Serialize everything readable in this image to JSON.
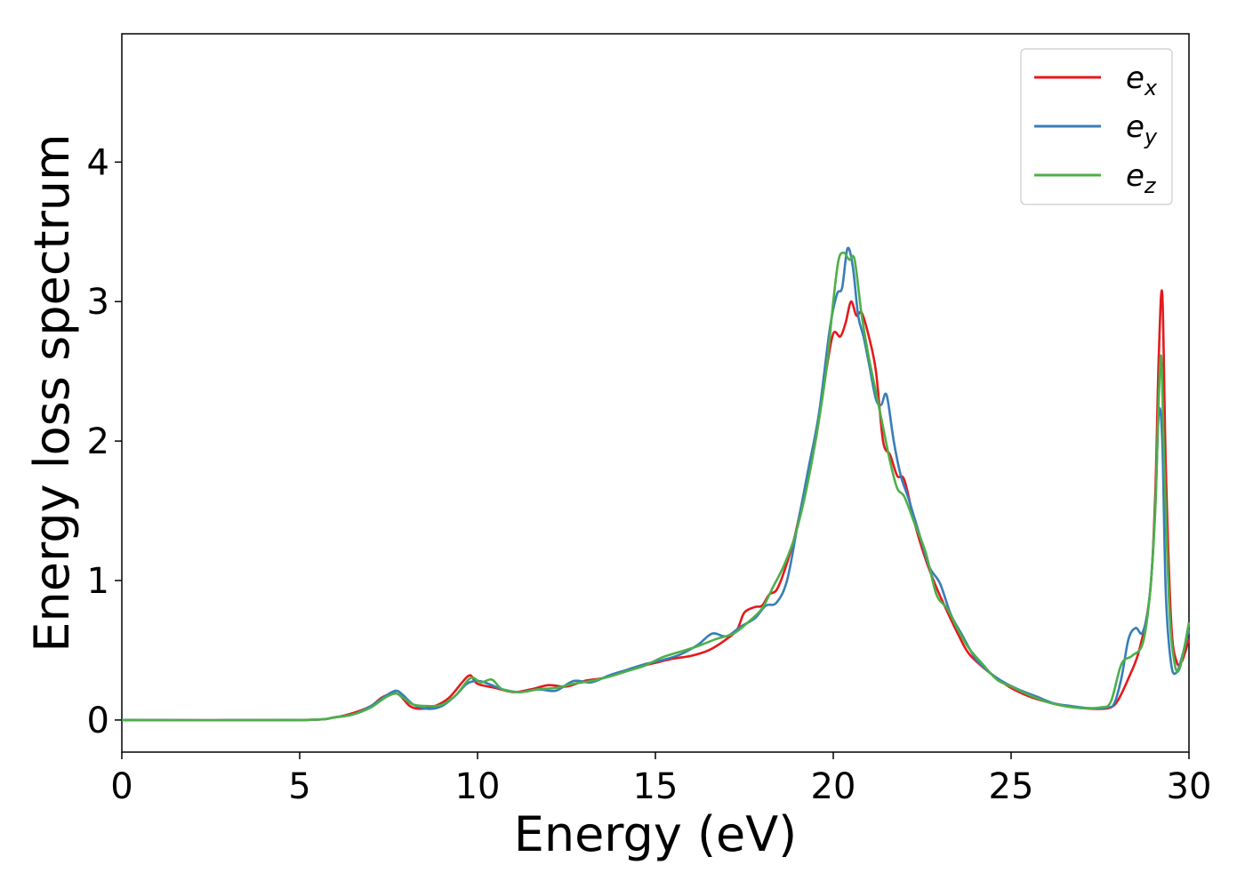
{
  "chart_data": {
    "type": "line",
    "title": "",
    "xlabel": "Energy (eV)",
    "ylabel": "Energy loss spectrum",
    "xlim": [
      0,
      30
    ],
    "ylim": [
      -0.23,
      4.92
    ],
    "xticks": [
      0,
      5,
      10,
      15,
      20,
      25,
      30
    ],
    "yticks": [
      0,
      1,
      2,
      3,
      4
    ],
    "grid": false,
    "legend_position": "top-right",
    "series": [
      {
        "name": "e",
        "subscript": "x",
        "color": "#e41a1c",
        "points": [
          [
            0,
            0
          ],
          [
            5,
            0
          ],
          [
            6,
            0.02
          ],
          [
            6.5,
            0.05
          ],
          [
            7,
            0.1
          ],
          [
            7.3,
            0.16
          ],
          [
            7.6,
            0.19
          ],
          [
            7.8,
            0.18
          ],
          [
            8.1,
            0.1
          ],
          [
            8.4,
            0.08
          ],
          [
            8.8,
            0.1
          ],
          [
            9.2,
            0.16
          ],
          [
            9.6,
            0.28
          ],
          [
            9.8,
            0.32
          ],
          [
            10,
            0.26
          ],
          [
            10.5,
            0.23
          ],
          [
            11,
            0.2
          ],
          [
            11.5,
            0.22
          ],
          [
            12,
            0.25
          ],
          [
            12.5,
            0.24
          ],
          [
            13,
            0.28
          ],
          [
            13.5,
            0.3
          ],
          [
            14,
            0.34
          ],
          [
            14.5,
            0.38
          ],
          [
            15,
            0.41
          ],
          [
            15.5,
            0.44
          ],
          [
            16,
            0.46
          ],
          [
            16.5,
            0.5
          ],
          [
            17,
            0.58
          ],
          [
            17.3,
            0.65
          ],
          [
            17.5,
            0.77
          ],
          [
            17.8,
            0.81
          ],
          [
            18,
            0.82
          ],
          [
            18.2,
            0.9
          ],
          [
            18.4,
            0.93
          ],
          [
            18.6,
            1.05
          ],
          [
            18.9,
            1.3
          ],
          [
            19.2,
            1.65
          ],
          [
            19.5,
            2.0
          ],
          [
            19.8,
            2.5
          ],
          [
            20.0,
            2.77
          ],
          [
            20.2,
            2.75
          ],
          [
            20.35,
            2.85
          ],
          [
            20.5,
            3.0
          ],
          [
            20.65,
            2.9
          ],
          [
            20.8,
            2.92
          ],
          [
            21.0,
            2.75
          ],
          [
            21.2,
            2.5
          ],
          [
            21.4,
            2.0
          ],
          [
            21.6,
            1.9
          ],
          [
            21.8,
            1.75
          ],
          [
            22.0,
            1.72
          ],
          [
            22.3,
            1.4
          ],
          [
            22.6,
            1.15
          ],
          [
            22.9,
            0.95
          ],
          [
            23.2,
            0.78
          ],
          [
            23.5,
            0.62
          ],
          [
            23.8,
            0.48
          ],
          [
            24.2,
            0.38
          ],
          [
            24.6,
            0.3
          ],
          [
            25.0,
            0.23
          ],
          [
            25.5,
            0.17
          ],
          [
            26,
            0.13
          ],
          [
            26.5,
            0.1
          ],
          [
            27,
            0.085
          ],
          [
            27.5,
            0.08
          ],
          [
            27.8,
            0.09
          ],
          [
            28.0,
            0.14
          ],
          [
            28.3,
            0.3
          ],
          [
            28.6,
            0.5
          ],
          [
            28.9,
            0.9
          ],
          [
            29.05,
            1.6
          ],
          [
            29.15,
            2.6
          ],
          [
            29.25,
            3.05
          ],
          [
            29.35,
            1.8
          ],
          [
            29.5,
            0.7
          ],
          [
            29.65,
            0.42
          ],
          [
            29.8,
            0.42
          ],
          [
            30,
            0.58
          ]
        ]
      },
      {
        "name": "e",
        "subscript": "y",
        "color": "#377eb8",
        "points": [
          [
            0,
            0
          ],
          [
            5,
            0
          ],
          [
            6,
            0.02
          ],
          [
            6.5,
            0.04
          ],
          [
            7,
            0.1
          ],
          [
            7.4,
            0.17
          ],
          [
            7.7,
            0.21
          ],
          [
            7.9,
            0.18
          ],
          [
            8.2,
            0.11
          ],
          [
            8.6,
            0.08
          ],
          [
            9.0,
            0.1
          ],
          [
            9.4,
            0.18
          ],
          [
            9.7,
            0.26
          ],
          [
            10,
            0.28
          ],
          [
            10.3,
            0.26
          ],
          [
            10.7,
            0.22
          ],
          [
            11.2,
            0.2
          ],
          [
            11.7,
            0.22
          ],
          [
            12.2,
            0.21
          ],
          [
            12.7,
            0.28
          ],
          [
            13.2,
            0.27
          ],
          [
            13.7,
            0.32
          ],
          [
            14.2,
            0.36
          ],
          [
            14.7,
            0.4
          ],
          [
            15.2,
            0.43
          ],
          [
            15.7,
            0.47
          ],
          [
            16.2,
            0.54
          ],
          [
            16.6,
            0.62
          ],
          [
            17.0,
            0.6
          ],
          [
            17.4,
            0.67
          ],
          [
            17.8,
            0.73
          ],
          [
            18.1,
            0.82
          ],
          [
            18.4,
            0.84
          ],
          [
            18.7,
            1.0
          ],
          [
            19.0,
            1.4
          ],
          [
            19.3,
            1.8
          ],
          [
            19.6,
            2.2
          ],
          [
            19.9,
            2.8
          ],
          [
            20.1,
            3.05
          ],
          [
            20.25,
            3.1
          ],
          [
            20.4,
            3.38
          ],
          [
            20.55,
            3.25
          ],
          [
            20.7,
            2.9
          ],
          [
            20.85,
            2.75
          ],
          [
            21.0,
            2.56
          ],
          [
            21.2,
            2.3
          ],
          [
            21.35,
            2.26
          ],
          [
            21.5,
            2.33
          ],
          [
            21.7,
            2.0
          ],
          [
            21.9,
            1.75
          ],
          [
            22.1,
            1.6
          ],
          [
            22.4,
            1.35
          ],
          [
            22.7,
            1.1
          ],
          [
            23.0,
            0.98
          ],
          [
            23.3,
            0.76
          ],
          [
            23.6,
            0.62
          ],
          [
            24.0,
            0.44
          ],
          [
            24.4,
            0.34
          ],
          [
            24.8,
            0.27
          ],
          [
            25.2,
            0.22
          ],
          [
            25.7,
            0.17
          ],
          [
            26.2,
            0.12
          ],
          [
            26.7,
            0.1
          ],
          [
            27.2,
            0.085
          ],
          [
            27.7,
            0.09
          ],
          [
            27.9,
            0.12
          ],
          [
            28.1,
            0.3
          ],
          [
            28.3,
            0.58
          ],
          [
            28.5,
            0.66
          ],
          [
            28.7,
            0.63
          ],
          [
            28.9,
            0.9
          ],
          [
            29.05,
            1.5
          ],
          [
            29.15,
            2.2
          ],
          [
            29.25,
            2.0
          ],
          [
            29.35,
            0.9
          ],
          [
            29.5,
            0.4
          ],
          [
            29.65,
            0.34
          ],
          [
            29.8,
            0.45
          ],
          [
            30,
            0.65
          ]
        ]
      },
      {
        "name": "e",
        "subscript": "z",
        "color": "#4daf4a",
        "points": [
          [
            0,
            0
          ],
          [
            5,
            0
          ],
          [
            6,
            0.02
          ],
          [
            6.5,
            0.04
          ],
          [
            7,
            0.09
          ],
          [
            7.4,
            0.16
          ],
          [
            7.7,
            0.19
          ],
          [
            7.9,
            0.16
          ],
          [
            8.2,
            0.11
          ],
          [
            8.6,
            0.1
          ],
          [
            9.0,
            0.11
          ],
          [
            9.4,
            0.18
          ],
          [
            9.8,
            0.3
          ],
          [
            10.1,
            0.27
          ],
          [
            10.4,
            0.29
          ],
          [
            10.7,
            0.22
          ],
          [
            11.2,
            0.2
          ],
          [
            11.7,
            0.22
          ],
          [
            12.2,
            0.23
          ],
          [
            12.7,
            0.26
          ],
          [
            13.2,
            0.28
          ],
          [
            13.7,
            0.31
          ],
          [
            14.2,
            0.35
          ],
          [
            14.7,
            0.39
          ],
          [
            15.2,
            0.45
          ],
          [
            15.7,
            0.49
          ],
          [
            16.2,
            0.53
          ],
          [
            16.7,
            0.58
          ],
          [
            17.2,
            0.62
          ],
          [
            17.6,
            0.7
          ],
          [
            18.0,
            0.8
          ],
          [
            18.3,
            0.95
          ],
          [
            18.6,
            1.1
          ],
          [
            18.9,
            1.3
          ],
          [
            19.2,
            1.6
          ],
          [
            19.5,
            2.0
          ],
          [
            19.8,
            2.5
          ],
          [
            20.0,
            3.0
          ],
          [
            20.15,
            3.3
          ],
          [
            20.3,
            3.35
          ],
          [
            20.45,
            3.3
          ],
          [
            20.6,
            3.3
          ],
          [
            20.8,
            2.9
          ],
          [
            21.0,
            2.6
          ],
          [
            21.2,
            2.35
          ],
          [
            21.4,
            2.1
          ],
          [
            21.6,
            1.85
          ],
          [
            21.8,
            1.66
          ],
          [
            22.0,
            1.6
          ],
          [
            22.3,
            1.4
          ],
          [
            22.6,
            1.2
          ],
          [
            22.9,
            0.9
          ],
          [
            23.2,
            0.8
          ],
          [
            23.5,
            0.65
          ],
          [
            23.8,
            0.52
          ],
          [
            24.2,
            0.4
          ],
          [
            24.6,
            0.29
          ],
          [
            25.0,
            0.24
          ],
          [
            25.5,
            0.18
          ],
          [
            26,
            0.13
          ],
          [
            26.5,
            0.1
          ],
          [
            27,
            0.085
          ],
          [
            27.5,
            0.09
          ],
          [
            27.8,
            0.13
          ],
          [
            28.1,
            0.4
          ],
          [
            28.4,
            0.46
          ],
          [
            28.7,
            0.55
          ],
          [
            28.9,
            0.9
          ],
          [
            29.05,
            1.5
          ],
          [
            29.15,
            2.3
          ],
          [
            29.22,
            2.6
          ],
          [
            29.3,
            1.9
          ],
          [
            29.45,
            0.8
          ],
          [
            29.6,
            0.4
          ],
          [
            29.75,
            0.38
          ],
          [
            30,
            0.7
          ]
        ]
      }
    ]
  }
}
